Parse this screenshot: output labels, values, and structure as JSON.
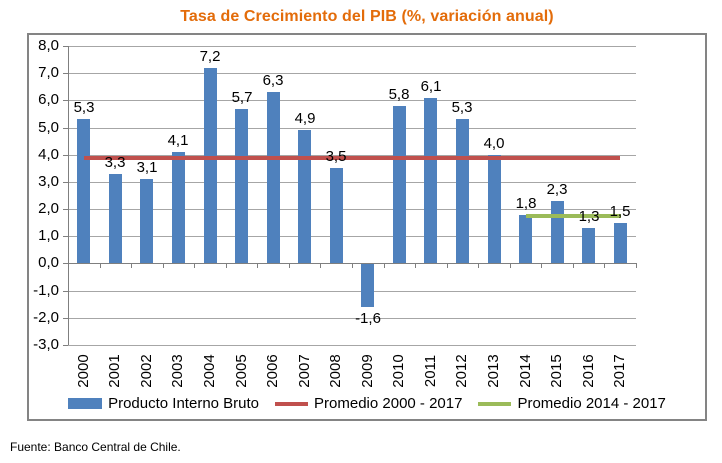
{
  "title": "Tasa de Crecimiento del PIB (%, variación anual)",
  "footer": "Fuente: Banco Central de Chile.",
  "chart_data": {
    "type": "bar",
    "title": "Tasa de Crecimiento del PIB (%, variación anual)",
    "categories": [
      "2000",
      "2001",
      "2002",
      "2003",
      "2004",
      "2005",
      "2006",
      "2007",
      "2008",
      "2009",
      "2010",
      "2011",
      "2012",
      "2013",
      "2014",
      "2015",
      "2016",
      "2017"
    ],
    "series": [
      {
        "name": "Producto Interno Bruto",
        "values": [
          5.3,
          3.3,
          3.1,
          4.1,
          7.2,
          5.7,
          6.3,
          4.9,
          3.5,
          -1.6,
          5.8,
          6.1,
          5.3,
          4.0,
          1.8,
          2.3,
          1.3,
          1.5
        ],
        "value_labels": [
          "5,3",
          "3,3",
          "3,1",
          "4,1",
          "7,2",
          "5,7",
          "6,3",
          "4,9",
          "3,5",
          "-1,6",
          "5,8",
          "6,1",
          "5,3",
          "4,0",
          "1,8",
          "2,3",
          "1,3",
          "1,5"
        ]
      }
    ],
    "reference_lines": [
      {
        "name": "Promedio 2000 - 2017",
        "value": 3.88,
        "from_category": "2000",
        "to_category": "2017",
        "color": "#C0504D"
      },
      {
        "name": "Promedio 2014 - 2017",
        "value": 1.73,
        "from_category": "2014",
        "to_category": "2017",
        "color": "#9BBB59"
      }
    ],
    "xlabel": "",
    "ylabel": "",
    "ylim": [
      -3.0,
      8.0
    ],
    "y_step": 1.0,
    "y_tick_labels": [
      "8,0",
      "7,0",
      "6,0",
      "5,0",
      "4,0",
      "3,0",
      "2,0",
      "1,0",
      "0,0",
      "-1,0",
      "-2,0",
      "-3,0"
    ],
    "grid": true,
    "legend_position": "bottom",
    "legend": [
      {
        "label": "Producto Interno Bruto",
        "marker": "bar",
        "color": "#4F81BD"
      },
      {
        "label": "Promedio 2000 - 2017",
        "marker": "line",
        "color": "#C0504D"
      },
      {
        "label": "Promedio 2014 - 2017",
        "marker": "line",
        "color": "#9BBB59"
      }
    ],
    "colors": {
      "bar": "#4F81BD",
      "title": "#E36C0A",
      "grid": "#A6A6A6",
      "axis": "#7F7F7F",
      "frame_border": "#848484",
      "text": "#000000"
    }
  }
}
